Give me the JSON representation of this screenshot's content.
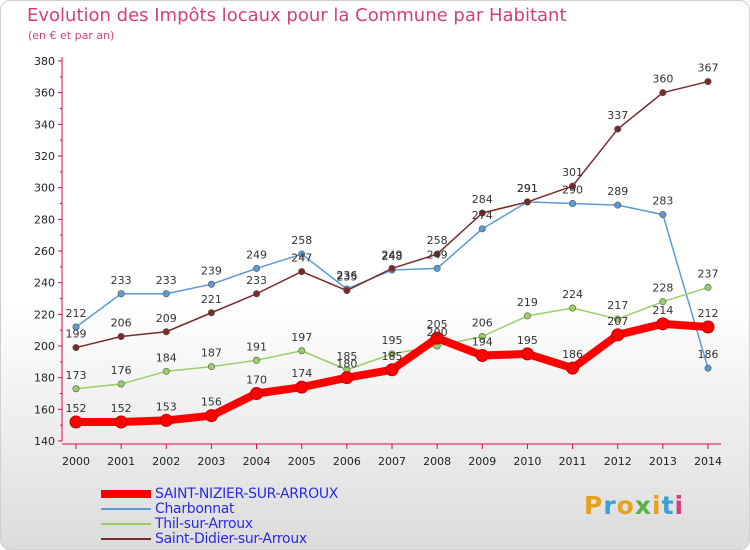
{
  "header": {
    "title": "Evolution des Impôts locaux pour la Commune par Habitant",
    "subtitle": "(en € et par an)"
  },
  "logo": {
    "text": "Proxiti",
    "colors": [
      "#e8a020",
      "#3a9fd8",
      "#e8a020",
      "#56b34a",
      "#e8a020",
      "#3a9fd8",
      "#d43f7a"
    ]
  },
  "chart_data": {
    "type": "line",
    "title": "Evolution des Impôts locaux pour la Commune par Habitant",
    "subtitle": "(en € et par an)",
    "xlabel": "",
    "ylabel": "",
    "x": [
      "2000",
      "2001",
      "2002",
      "2003",
      "2004",
      "2005",
      "2006",
      "2007",
      "2008",
      "2009",
      "2010",
      "2011",
      "2012",
      "2013",
      "2014"
    ],
    "ylim": [
      140,
      380
    ],
    "yticks": [
      140,
      160,
      180,
      200,
      220,
      240,
      260,
      280,
      300,
      320,
      340,
      360,
      380
    ],
    "grid": false,
    "legend": "bottom-left",
    "series": [
      {
        "name": "SAINT-NIZIER-SUR-ARROUX",
        "color": "#ff0000",
        "bold": true,
        "values": [
          152,
          152,
          153,
          156,
          170,
          174,
          180,
          185,
          205,
          194,
          195,
          186,
          207,
          214,
          212
        ]
      },
      {
        "name": "Charbonnat",
        "color": "#5b9bd5",
        "values": [
          212,
          233,
          233,
          239,
          249,
          258,
          236,
          248,
          249,
          274,
          291,
          290,
          289,
          283,
          186
        ]
      },
      {
        "name": "Thil-sur-Arroux",
        "color": "#99d066",
        "values": [
          173,
          176,
          184,
          187,
          191,
          197,
          185,
          195,
          200,
          206,
          219,
          224,
          217,
          228,
          237
        ]
      },
      {
        "name": "Saint-Didier-sur-Arroux",
        "color": "#7a2a2a",
        "values": [
          199,
          206,
          209,
          221,
          233,
          247,
          235,
          249,
          258,
          284,
          291,
          301,
          337,
          360,
          367
        ]
      }
    ]
  }
}
